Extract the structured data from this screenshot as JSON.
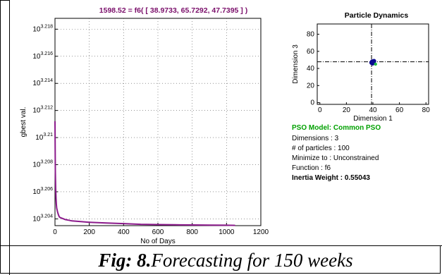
{
  "colors": {
    "main_title": "#7a0e6a",
    "gbest_line": "#8b1a8b",
    "pso_model": "#00a000",
    "particle_blue": "#0a0a90",
    "particle_green": "#22bb44"
  },
  "caption": {
    "fig_label": "Fig: 8.",
    "fig_text": "Forecasting for 150 weeks"
  },
  "info_panel": {
    "pso_model": "PSO Model: Common PSO",
    "dimensions": "Dimensions : 3",
    "particles": "# of particles : 100",
    "minimize": "Minimize to :  Unconstrained",
    "function": "Function : f6",
    "inertia": "Inertia Weight : 0.55043"
  },
  "chart_data": [
    {
      "type": "line",
      "title": "1598.52 = f6( [  38.9733,   65.7292,   47.7395 ] )",
      "xlabel": "No of Days",
      "ylabel": "gbest val.",
      "xlim": [
        0,
        1200
      ],
      "ylim": [
        3.2035,
        3.2188
      ],
      "y_scale": "log10",
      "grid": true,
      "x_ticks": [
        0,
        200,
        400,
        600,
        800,
        1000,
        1200
      ],
      "x_tick_labels": [
        "0",
        "200",
        "400",
        "600",
        "800",
        "1000",
        "1200"
      ],
      "y_ticks": [
        3.204,
        3.206,
        3.208,
        3.21,
        3.212,
        3.214,
        3.216,
        3.218
      ],
      "y_tick_base": "10",
      "y_tick_exps": [
        "3.204",
        "3.206",
        "3.208",
        "3.21",
        "3.212",
        "3.214",
        "3.216",
        "3.218"
      ],
      "series": [
        {
          "x": [
            0,
            2,
            4,
            6,
            8,
            10,
            15,
            20,
            25,
            30,
            40,
            50,
            60,
            80,
            100,
            150,
            200,
            300,
            400,
            500,
            600,
            700,
            800,
            900,
            1000,
            1050
          ],
          "y": [
            3.2112,
            3.2075,
            3.2062,
            3.2055,
            3.2051,
            3.2048,
            3.2045,
            3.2043,
            3.20415,
            3.2041,
            3.20405,
            3.204,
            3.20395,
            3.2039,
            3.20385,
            3.2038,
            3.20375,
            3.2037,
            3.20365,
            3.2036,
            3.20358,
            3.20356,
            3.20355,
            3.20354,
            3.20353,
            3.20352
          ]
        }
      ]
    },
    {
      "type": "scatter",
      "title": "Particle Dynamics",
      "xlabel": "Dimension 1",
      "ylabel": "Dimension 3",
      "xlim": [
        -2,
        82
      ],
      "ylim": [
        -2,
        92
      ],
      "grid": false,
      "x_ticks": [
        0,
        20,
        40,
        60,
        80
      ],
      "x_tick_labels": [
        "0",
        "20",
        "40",
        "60",
        "80"
      ],
      "y_ticks": [
        0,
        20,
        40,
        60,
        80
      ],
      "y_tick_labels": [
        "0",
        "20",
        "40",
        "60",
        "80"
      ],
      "crosshair": [
        38.9733,
        47.7395
      ],
      "series": [
        {
          "x": [
            39.5,
            40.2,
            39.0,
            40.8,
            39.8
          ],
          "y": [
            48.0,
            47.2,
            46.8,
            48.5,
            46.0
          ]
        },
        {
          "x": [
            42.0
          ],
          "y": [
            45.0
          ]
        }
      ]
    }
  ]
}
